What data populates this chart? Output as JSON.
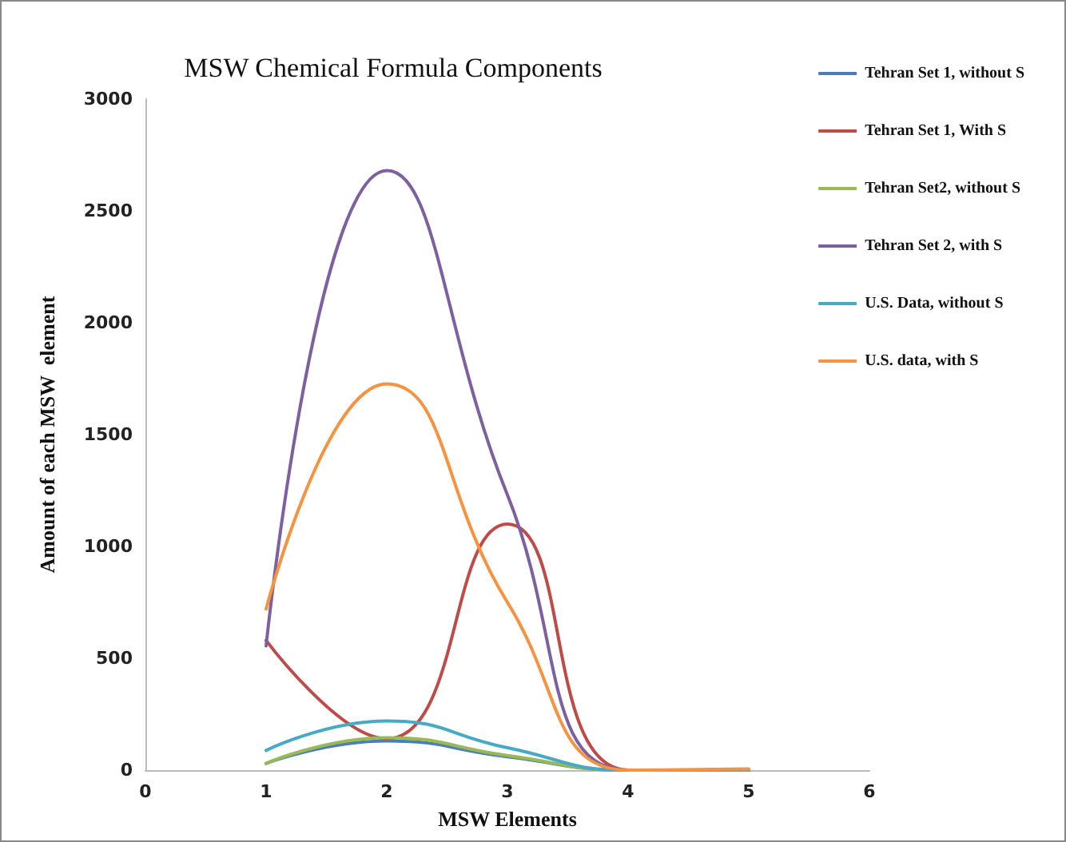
{
  "chart_data": {
    "type": "line",
    "title": "MSW Chemical Formula Components",
    "xlabel": "MSW Elements",
    "ylabel": "Amount of each MSW  element",
    "x": [
      1,
      2,
      3,
      4,
      5
    ],
    "series": [
      {
        "name": "Tehran Set 1, without S",
        "color": "#4a7ebb",
        "values": [
          30,
          130,
          60,
          0,
          0
        ]
      },
      {
        "name": "Tehran Set 1, With S",
        "color": "#be4b48",
        "values": [
          580,
          140,
          1100,
          0,
          0
        ]
      },
      {
        "name": "Tehran Set2, without S",
        "color": "#98b954",
        "values": [
          30,
          145,
          65,
          0,
          0
        ]
      },
      {
        "name": "Tehran Set 2, with S",
        "color": "#7d60a0",
        "values": [
          555,
          2680,
          1230,
          0,
          0
        ]
      },
      {
        "name": "U.S. Data, without S",
        "color": "#46aac5",
        "values": [
          88,
          220,
          100,
          0,
          0
        ]
      },
      {
        "name": "U.S. data, with S",
        "color": "#f69240",
        "values": [
          720,
          1727,
          750,
          0,
          5
        ]
      }
    ],
    "xlim": [
      0,
      6
    ],
    "xticks": [
      0,
      1,
      2,
      3,
      4,
      5,
      6
    ],
    "ylim": [
      0,
      3000
    ],
    "yticks": [
      0,
      500,
      1000,
      1500,
      2000,
      2500,
      3000
    ],
    "grid": false,
    "legend": "right",
    "marker": "none",
    "line_style": "solid"
  }
}
